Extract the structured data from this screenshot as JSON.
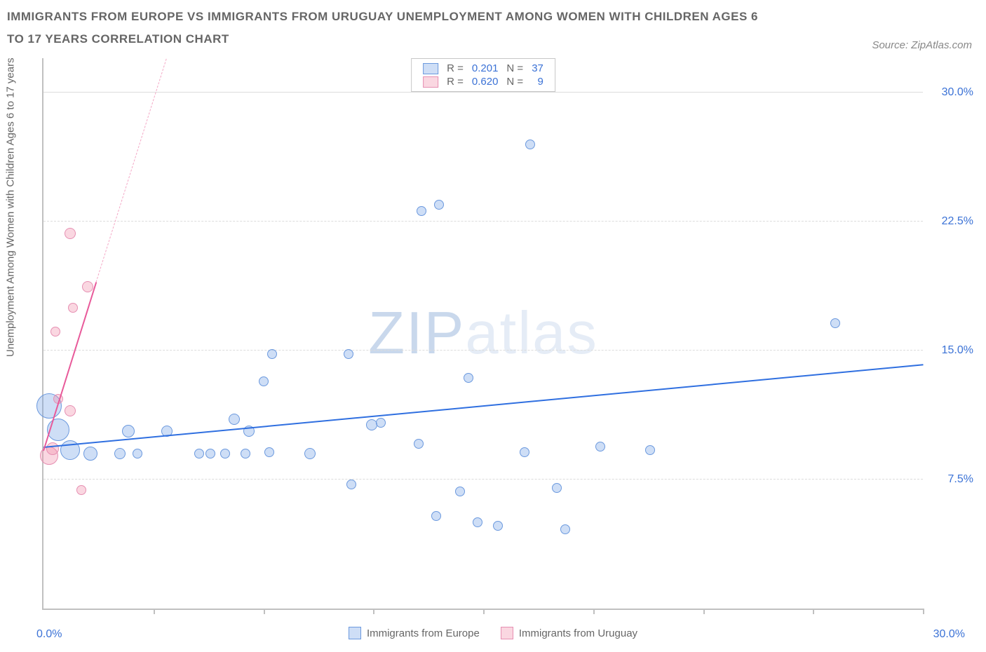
{
  "title": "IMMIGRANTS FROM EUROPE VS IMMIGRANTS FROM URUGUAY UNEMPLOYMENT AMONG WOMEN WITH CHILDREN AGES 6 TO 17 YEARS CORRELATION CHART",
  "source": "Source: ZipAtlas.com",
  "ylabel": "Unemployment Among Women with Children Ages 6 to 17 years",
  "watermark": {
    "bold": "ZIP",
    "light": "atlas"
  },
  "axes": {
    "xmin": 0,
    "xmax": 30,
    "ymin": 0,
    "ymax": 32,
    "x_origin_label": "0.0%",
    "x_max_label": "30.0%",
    "y_ticks": [
      {
        "v": 7.5,
        "label": "7.5%"
      },
      {
        "v": 15.0,
        "label": "15.0%"
      },
      {
        "v": 22.5,
        "label": "22.5%"
      },
      {
        "v": 30.0,
        "label": "30.0%"
      }
    ],
    "x_tick_positions": [
      3.75,
      7.5,
      11.25,
      15.0,
      18.75,
      22.5,
      26.25,
      30.0
    ],
    "grid_color": "#dcdcdc",
    "axis_color": "#c0c0c0"
  },
  "series": [
    {
      "id": "europe",
      "label": "Immigrants from Europe",
      "fill": "rgba(115,160,230,0.35)",
      "stroke": "#6b99de",
      "R": "0.201",
      "N": "37",
      "trend": {
        "x1": 0,
        "y1": 9.4,
        "x2": 30,
        "y2": 14.2,
        "width": 2.5,
        "dash": false,
        "color": "#2f6fe0"
      },
      "points": [
        {
          "x": 0.2,
          "y": 11.8,
          "r": 18
        },
        {
          "x": 0.5,
          "y": 10.4,
          "r": 16
        },
        {
          "x": 0.9,
          "y": 9.2,
          "r": 14
        },
        {
          "x": 1.6,
          "y": 9.0,
          "r": 10
        },
        {
          "x": 2.6,
          "y": 9.0,
          "r": 8
        },
        {
          "x": 2.9,
          "y": 10.3,
          "r": 9
        },
        {
          "x": 3.2,
          "y": 9.0,
          "r": 7
        },
        {
          "x": 4.2,
          "y": 10.3,
          "r": 8
        },
        {
          "x": 5.3,
          "y": 9.0,
          "r": 7
        },
        {
          "x": 5.7,
          "y": 9.0,
          "r": 7
        },
        {
          "x": 6.2,
          "y": 9.0,
          "r": 7
        },
        {
          "x": 6.5,
          "y": 11.0,
          "r": 8
        },
        {
          "x": 6.9,
          "y": 9.0,
          "r": 7
        },
        {
          "x": 7.0,
          "y": 10.3,
          "r": 8
        },
        {
          "x": 7.7,
          "y": 9.1,
          "r": 7
        },
        {
          "x": 7.5,
          "y": 13.2,
          "r": 7
        },
        {
          "x": 7.8,
          "y": 14.8,
          "r": 7
        },
        {
          "x": 9.1,
          "y": 9.0,
          "r": 8
        },
        {
          "x": 10.4,
          "y": 14.8,
          "r": 7
        },
        {
          "x": 10.5,
          "y": 7.2,
          "r": 7
        },
        {
          "x": 11.2,
          "y": 10.7,
          "r": 8
        },
        {
          "x": 11.5,
          "y": 10.8,
          "r": 7
        },
        {
          "x": 12.8,
          "y": 9.6,
          "r": 7
        },
        {
          "x": 12.9,
          "y": 23.1,
          "r": 7
        },
        {
          "x": 13.5,
          "y": 23.5,
          "r": 7
        },
        {
          "x": 13.4,
          "y": 5.4,
          "r": 7
        },
        {
          "x": 14.2,
          "y": 6.8,
          "r": 7
        },
        {
          "x": 14.8,
          "y": 5.0,
          "r": 7
        },
        {
          "x": 14.5,
          "y": 13.4,
          "r": 7
        },
        {
          "x": 15.5,
          "y": 4.8,
          "r": 7
        },
        {
          "x": 16.4,
          "y": 9.1,
          "r": 7
        },
        {
          "x": 16.6,
          "y": 27.0,
          "r": 7
        },
        {
          "x": 17.5,
          "y": 7.0,
          "r": 7
        },
        {
          "x": 17.8,
          "y": 4.6,
          "r": 7
        },
        {
          "x": 19.0,
          "y": 9.4,
          "r": 7
        },
        {
          "x": 20.7,
          "y": 9.2,
          "r": 7
        },
        {
          "x": 27.0,
          "y": 16.6,
          "r": 7
        }
      ]
    },
    {
      "id": "uruguay",
      "label": "Immigrants from Uruguay",
      "fill": "rgba(240,140,170,0.35)",
      "stroke": "#e68fb2",
      "R": "0.620",
      "N": "9",
      "trend_solid": {
        "x1": 0,
        "y1": 9.2,
        "x2": 1.8,
        "y2": 19.0,
        "width": 2.5,
        "color": "#e85a9a"
      },
      "trend_dash": {
        "x1": 1.8,
        "y1": 19.0,
        "x2": 4.2,
        "y2": 32.0,
        "width": 1.5,
        "color": "#f4a8c6"
      },
      "points": [
        {
          "x": 0.2,
          "y": 8.9,
          "r": 13
        },
        {
          "x": 0.3,
          "y": 9.3,
          "r": 9
        },
        {
          "x": 0.9,
          "y": 11.5,
          "r": 8
        },
        {
          "x": 0.5,
          "y": 12.2,
          "r": 7
        },
        {
          "x": 0.4,
          "y": 16.1,
          "r": 7
        },
        {
          "x": 1.0,
          "y": 17.5,
          "r": 7
        },
        {
          "x": 1.5,
          "y": 18.7,
          "r": 8
        },
        {
          "x": 0.9,
          "y": 21.8,
          "r": 8
        },
        {
          "x": 1.3,
          "y": 6.9,
          "r": 7
        }
      ]
    }
  ],
  "colors": {
    "title": "#666666",
    "value": "#3b72d6",
    "background": "#ffffff"
  }
}
